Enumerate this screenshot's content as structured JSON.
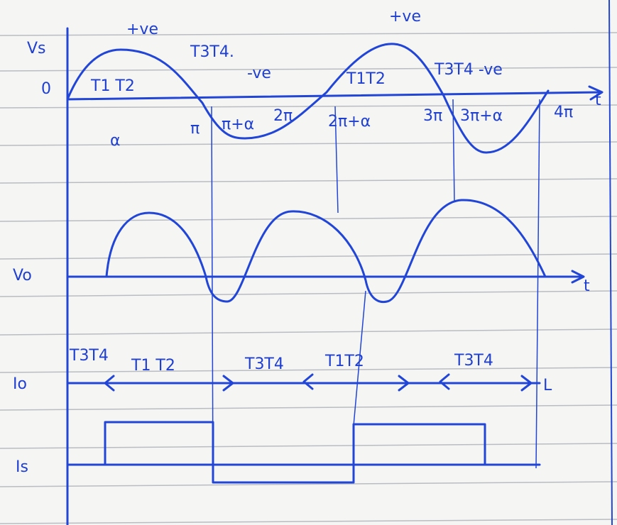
{
  "panels": [
    {
      "axis_label": "Vs",
      "origin_label": "0",
      "time_label": "t",
      "annotations": [
        "+ve",
        "T1 T2",
        "T3T4.",
        "-ve",
        "α",
        "π",
        "π+α",
        "2π",
        "2π+α",
        "3π",
        "3π+α",
        "4π",
        "+ve",
        "T1T2",
        "T3T4 -ve"
      ]
    },
    {
      "axis_label": "Vo",
      "time_label": "t",
      "annotations": []
    },
    {
      "axis_label": "Io",
      "time_label": "L",
      "annotations": [
        "T3T4",
        "T1 T2",
        "T3T4",
        "T1T2",
        "T3T4"
      ]
    },
    {
      "axis_label": "Is",
      "annotations": []
    }
  ]
}
